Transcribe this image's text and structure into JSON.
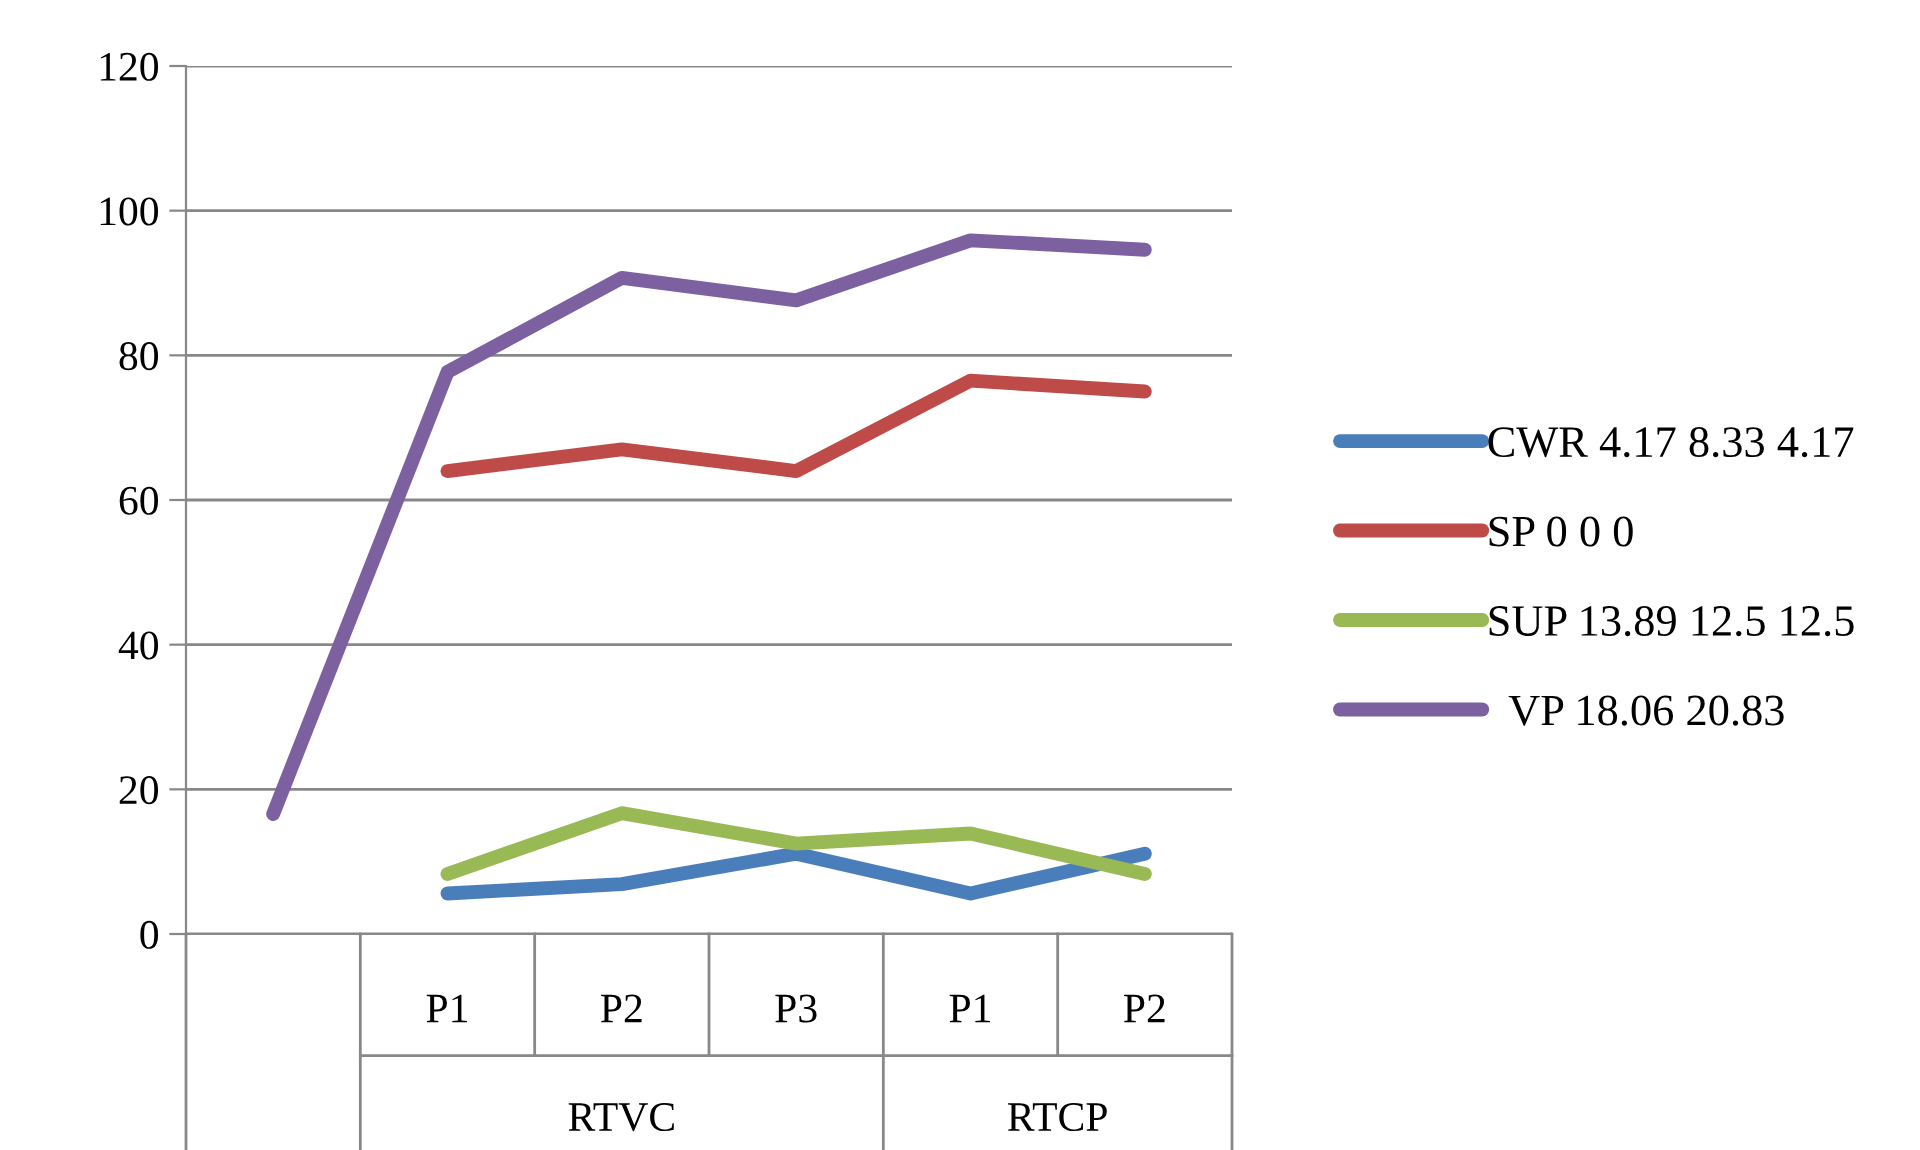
{
  "chart_data": {
    "type": "line",
    "categories": [
      null,
      "P1",
      "P2",
      "P3",
      "P1",
      "P2"
    ],
    "series": [
      {
        "name": "CWR 4.17 8.33 4.17",
        "color": "#4a7ebb",
        "values": [
          null,
          5.6,
          6.9,
          11.1,
          5.6,
          11.1
        ]
      },
      {
        "name": "SP 0 0 0",
        "color": "#be4b48",
        "values": [
          null,
          64,
          67,
          64,
          76.5,
          75
        ]
      },
      {
        "name": "SUP 13.89 12.5 12.5",
        "color": "#98b954",
        "values": [
          null,
          8.3,
          16.7,
          12.5,
          13.9,
          8.3
        ]
      },
      {
        "name": "  VP 18.06 20.83",
        "color": "#7d60a0",
        "values": [
          16.6,
          77.7,
          90.7,
          87.6,
          95.9,
          94.6
        ]
      }
    ],
    "annotations": [
      "RTVC",
      "RTCP"
    ],
    "ylim": [
      0,
      120
    ],
    "yticks": [
      0,
      20,
      40,
      60,
      80,
      100,
      120
    ],
    "grid": "y",
    "legend": "right",
    "marker": "none",
    "line_style": "solid"
  }
}
